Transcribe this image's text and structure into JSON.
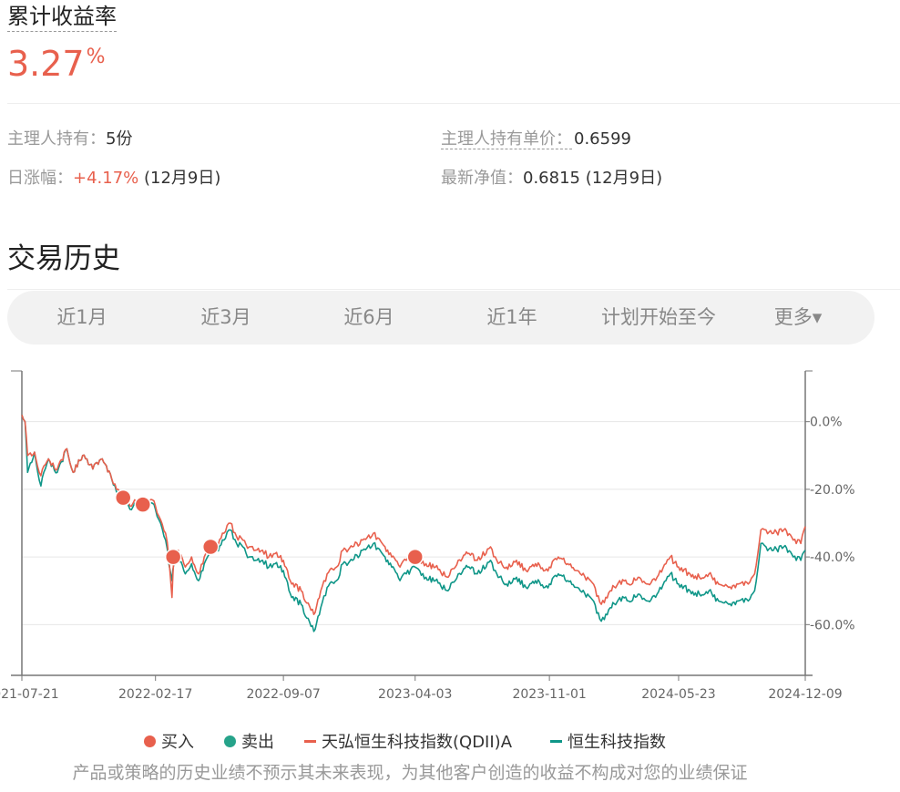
{
  "header": {
    "title": "累计收益率",
    "rate_value": "3.27",
    "rate_unit": "%"
  },
  "info": {
    "holding_label": "主理人持有：",
    "holding_value": "5份",
    "unit_price_label": "主理人持有单价：",
    "unit_price_value": "0.6599",
    "daily_change_label": "日涨幅：",
    "daily_change_value": "+4.17%",
    "daily_change_date": "(12月9日)",
    "nav_label": "最新净值：",
    "nav_value": "0.6815 (12月9日)"
  },
  "section_title": "交易历史",
  "tabs": [
    "近1月",
    "近3月",
    "近6月",
    "近1年",
    "计划开始至今",
    "更多▾"
  ],
  "legend": {
    "buy": "买入",
    "sell": "卖出",
    "fund": "天弘恒生科技指数(QDII)A",
    "index": "恒生科技指数"
  },
  "disclaimer": "产品或策略的历史业绩不预示其未来表现，为其他客户创造的收益不构成对您的业绩保证",
  "colors": {
    "fund": "#e8604d",
    "index": "#0f9688",
    "buy": "#e8604d",
    "sell": "#26a38a",
    "axis": "#777777",
    "grid": "#e6e6e6"
  },
  "chart_data": {
    "type": "line",
    "xlim": [
      "2021-07-21",
      "2024-12-09"
    ],
    "ylim": [
      -75,
      15
    ],
    "x_ticks": [
      "2021-07-21",
      "2022-02-17",
      "2022-09-07",
      "2023-04-03",
      "2023-11-01",
      "2024-05-23",
      "2024-12-09"
    ],
    "y_ticks": [
      0,
      -20,
      -40,
      -60
    ],
    "y_tick_labels": [
      "0.0%",
      "-20.0%",
      "-40.0%",
      "-60.0%"
    ],
    "grid": true,
    "legend_position": "bottom",
    "series": [
      {
        "name": "天弘恒生科技指数(QDII)A",
        "color": "#e8604d",
        "points": [
          [
            "2021-07-21",
            2
          ],
          [
            "2021-07-26",
            0
          ],
          [
            "2021-07-30",
            -10
          ],
          [
            "2021-08-10",
            -9
          ],
          [
            "2021-08-20",
            -16
          ],
          [
            "2021-09-01",
            -11
          ],
          [
            "2021-09-15",
            -14
          ],
          [
            "2021-09-30",
            -8
          ],
          [
            "2021-10-10",
            -15
          ],
          [
            "2021-10-25",
            -10
          ],
          [
            "2021-11-10",
            -14
          ],
          [
            "2021-11-25",
            -11
          ],
          [
            "2021-12-10",
            -17
          ],
          [
            "2021-12-20",
            -20
          ],
          [
            "2022-01-01",
            -22
          ],
          [
            "2022-01-10",
            -25
          ],
          [
            "2022-01-20",
            -23
          ],
          [
            "2022-01-28",
            -25
          ],
          [
            "2022-02-10",
            -23
          ],
          [
            "2022-02-17",
            -25
          ],
          [
            "2022-02-25",
            -29
          ],
          [
            "2022-03-05",
            -33
          ],
          [
            "2022-03-10",
            -40
          ],
          [
            "2022-03-15",
            -52
          ],
          [
            "2022-03-18",
            -40
          ],
          [
            "2022-03-25",
            -38
          ],
          [
            "2022-04-05",
            -43
          ],
          [
            "2022-04-15",
            -40
          ],
          [
            "2022-04-26",
            -45
          ],
          [
            "2022-05-05",
            -40
          ],
          [
            "2022-05-15",
            -37
          ],
          [
            "2022-05-25",
            -36
          ],
          [
            "2022-06-05",
            -33
          ],
          [
            "2022-06-15",
            -30
          ],
          [
            "2022-06-25",
            -34
          ],
          [
            "2022-07-05",
            -35
          ],
          [
            "2022-07-15",
            -37
          ],
          [
            "2022-07-25",
            -38
          ],
          [
            "2022-08-05",
            -38
          ],
          [
            "2022-08-15",
            -40
          ],
          [
            "2022-08-25",
            -39
          ],
          [
            "2022-09-07",
            -41
          ],
          [
            "2022-09-20",
            -48
          ],
          [
            "2022-10-05",
            -50
          ],
          [
            "2022-10-25",
            -57
          ],
          [
            "2022-11-05",
            -50
          ],
          [
            "2022-11-15",
            -45
          ],
          [
            "2022-11-30",
            -43
          ],
          [
            "2022-12-10",
            -38
          ],
          [
            "2022-12-25",
            -37
          ],
          [
            "2023-01-10",
            -35
          ],
          [
            "2023-01-27",
            -33
          ],
          [
            "2023-02-10",
            -36
          ],
          [
            "2023-02-25",
            -40
          ],
          [
            "2023-03-10",
            -43
          ],
          [
            "2023-03-20",
            -41
          ],
          [
            "2023-04-03",
            -40
          ],
          [
            "2023-04-20",
            -42
          ],
          [
            "2023-05-05",
            -43
          ],
          [
            "2023-05-25",
            -46
          ],
          [
            "2023-06-10",
            -41
          ],
          [
            "2023-06-25",
            -39
          ],
          [
            "2023-07-10",
            -41
          ],
          [
            "2023-07-31",
            -37
          ],
          [
            "2023-08-10",
            -41
          ],
          [
            "2023-08-25",
            -43
          ],
          [
            "2023-09-10",
            -41
          ],
          [
            "2023-09-25",
            -44
          ],
          [
            "2023-10-10",
            -42
          ],
          [
            "2023-10-25",
            -44
          ],
          [
            "2023-11-01",
            -43
          ],
          [
            "2023-11-15",
            -40
          ],
          [
            "2023-11-30",
            -42
          ],
          [
            "2023-12-15",
            -44
          ],
          [
            "2024-01-05",
            -47
          ],
          [
            "2024-01-22",
            -54
          ],
          [
            "2024-02-05",
            -50
          ],
          [
            "2024-02-20",
            -47
          ],
          [
            "2024-03-05",
            -48
          ],
          [
            "2024-03-20",
            -46
          ],
          [
            "2024-04-05",
            -48
          ],
          [
            "2024-04-19",
            -46
          ],
          [
            "2024-05-10",
            -40
          ],
          [
            "2024-05-23",
            -43
          ],
          [
            "2024-06-10",
            -45
          ],
          [
            "2024-06-25",
            -46
          ],
          [
            "2024-07-10",
            -45
          ],
          [
            "2024-07-25",
            -48
          ],
          [
            "2024-08-10",
            -49
          ],
          [
            "2024-08-25",
            -48
          ],
          [
            "2024-09-10",
            -48
          ],
          [
            "2024-09-20",
            -45
          ],
          [
            "2024-09-30",
            -32
          ],
          [
            "2024-10-08",
            -32
          ],
          [
            "2024-10-20",
            -33
          ],
          [
            "2024-11-05",
            -32
          ],
          [
            "2024-11-20",
            -35
          ],
          [
            "2024-12-02",
            -36
          ],
          [
            "2024-12-09",
            -31
          ]
        ]
      },
      {
        "name": "恒生科技指数",
        "color": "#0f9688",
        "points": [
          [
            "2021-07-21",
            2
          ],
          [
            "2021-07-26",
            0
          ],
          [
            "2021-07-30",
            -15
          ],
          [
            "2021-08-10",
            -9
          ],
          [
            "2021-08-20",
            -19
          ],
          [
            "2021-09-01",
            -11
          ],
          [
            "2021-09-15",
            -15
          ],
          [
            "2021-09-30",
            -8
          ],
          [
            "2021-10-10",
            -15
          ],
          [
            "2021-10-25",
            -10
          ],
          [
            "2021-11-10",
            -14
          ],
          [
            "2021-11-25",
            -11
          ],
          [
            "2021-12-10",
            -17
          ],
          [
            "2021-12-20",
            -21
          ],
          [
            "2022-01-01",
            -23
          ],
          [
            "2022-01-10",
            -26
          ],
          [
            "2022-01-20",
            -24
          ],
          [
            "2022-01-28",
            -26
          ],
          [
            "2022-02-10",
            -24
          ],
          [
            "2022-02-17",
            -26
          ],
          [
            "2022-02-25",
            -30
          ],
          [
            "2022-03-05",
            -35
          ],
          [
            "2022-03-10",
            -42
          ],
          [
            "2022-03-15",
            -47
          ],
          [
            "2022-03-18",
            -42
          ],
          [
            "2022-03-25",
            -40
          ],
          [
            "2022-04-05",
            -45
          ],
          [
            "2022-04-15",
            -42
          ],
          [
            "2022-04-26",
            -47
          ],
          [
            "2022-05-05",
            -42
          ],
          [
            "2022-05-15",
            -39
          ],
          [
            "2022-05-25",
            -38
          ],
          [
            "2022-06-05",
            -35
          ],
          [
            "2022-06-15",
            -32
          ],
          [
            "2022-06-25",
            -36
          ],
          [
            "2022-07-05",
            -37
          ],
          [
            "2022-07-15",
            -40
          ],
          [
            "2022-07-25",
            -41
          ],
          [
            "2022-08-05",
            -41
          ],
          [
            "2022-08-15",
            -43
          ],
          [
            "2022-08-25",
            -42
          ],
          [
            "2022-09-07",
            -44
          ],
          [
            "2022-09-20",
            -52
          ],
          [
            "2022-10-05",
            -54
          ],
          [
            "2022-10-25",
            -62
          ],
          [
            "2022-11-05",
            -55
          ],
          [
            "2022-11-15",
            -49
          ],
          [
            "2022-11-30",
            -47
          ],
          [
            "2022-12-10",
            -42
          ],
          [
            "2022-12-25",
            -41
          ],
          [
            "2023-01-10",
            -38
          ],
          [
            "2023-01-27",
            -36
          ],
          [
            "2023-02-10",
            -39
          ],
          [
            "2023-02-25",
            -43
          ],
          [
            "2023-03-10",
            -47
          ],
          [
            "2023-03-20",
            -45
          ],
          [
            "2023-04-03",
            -43
          ],
          [
            "2023-04-20",
            -46
          ],
          [
            "2023-05-05",
            -47
          ],
          [
            "2023-05-25",
            -50
          ],
          [
            "2023-06-10",
            -45
          ],
          [
            "2023-06-25",
            -43
          ],
          [
            "2023-07-10",
            -45
          ],
          [
            "2023-07-31",
            -41
          ],
          [
            "2023-08-10",
            -45
          ],
          [
            "2023-08-25",
            -48
          ],
          [
            "2023-09-10",
            -46
          ],
          [
            "2023-09-25",
            -49
          ],
          [
            "2023-10-10",
            -47
          ],
          [
            "2023-10-25",
            -49
          ],
          [
            "2023-11-01",
            -48
          ],
          [
            "2023-11-15",
            -45
          ],
          [
            "2023-11-30",
            -47
          ],
          [
            "2023-12-15",
            -49
          ],
          [
            "2024-01-05",
            -52
          ],
          [
            "2024-01-22",
            -59
          ],
          [
            "2024-02-05",
            -55
          ],
          [
            "2024-02-20",
            -52
          ],
          [
            "2024-03-05",
            -53
          ],
          [
            "2024-03-20",
            -51
          ],
          [
            "2024-04-05",
            -53
          ],
          [
            "2024-04-19",
            -51
          ],
          [
            "2024-05-10",
            -45
          ],
          [
            "2024-05-23",
            -48
          ],
          [
            "2024-06-10",
            -50
          ],
          [
            "2024-06-25",
            -51
          ],
          [
            "2024-07-10",
            -50
          ],
          [
            "2024-07-25",
            -53
          ],
          [
            "2024-08-10",
            -54
          ],
          [
            "2024-08-25",
            -53
          ],
          [
            "2024-09-10",
            -53
          ],
          [
            "2024-09-20",
            -50
          ],
          [
            "2024-09-30",
            -36
          ],
          [
            "2024-10-08",
            -37
          ],
          [
            "2024-10-20",
            -38
          ],
          [
            "2024-11-05",
            -37
          ],
          [
            "2024-11-20",
            -40
          ],
          [
            "2024-12-02",
            -41
          ],
          [
            "2024-12-09",
            -38
          ]
        ]
      }
    ],
    "buy_markers": [
      [
        "2021-12-28",
        -22.5
      ],
      [
        "2022-01-28",
        -24.5
      ],
      [
        "2022-03-17",
        -40
      ],
      [
        "2022-05-15",
        -37
      ],
      [
        "2023-04-03",
        -40
      ]
    ],
    "sell_markers": []
  }
}
